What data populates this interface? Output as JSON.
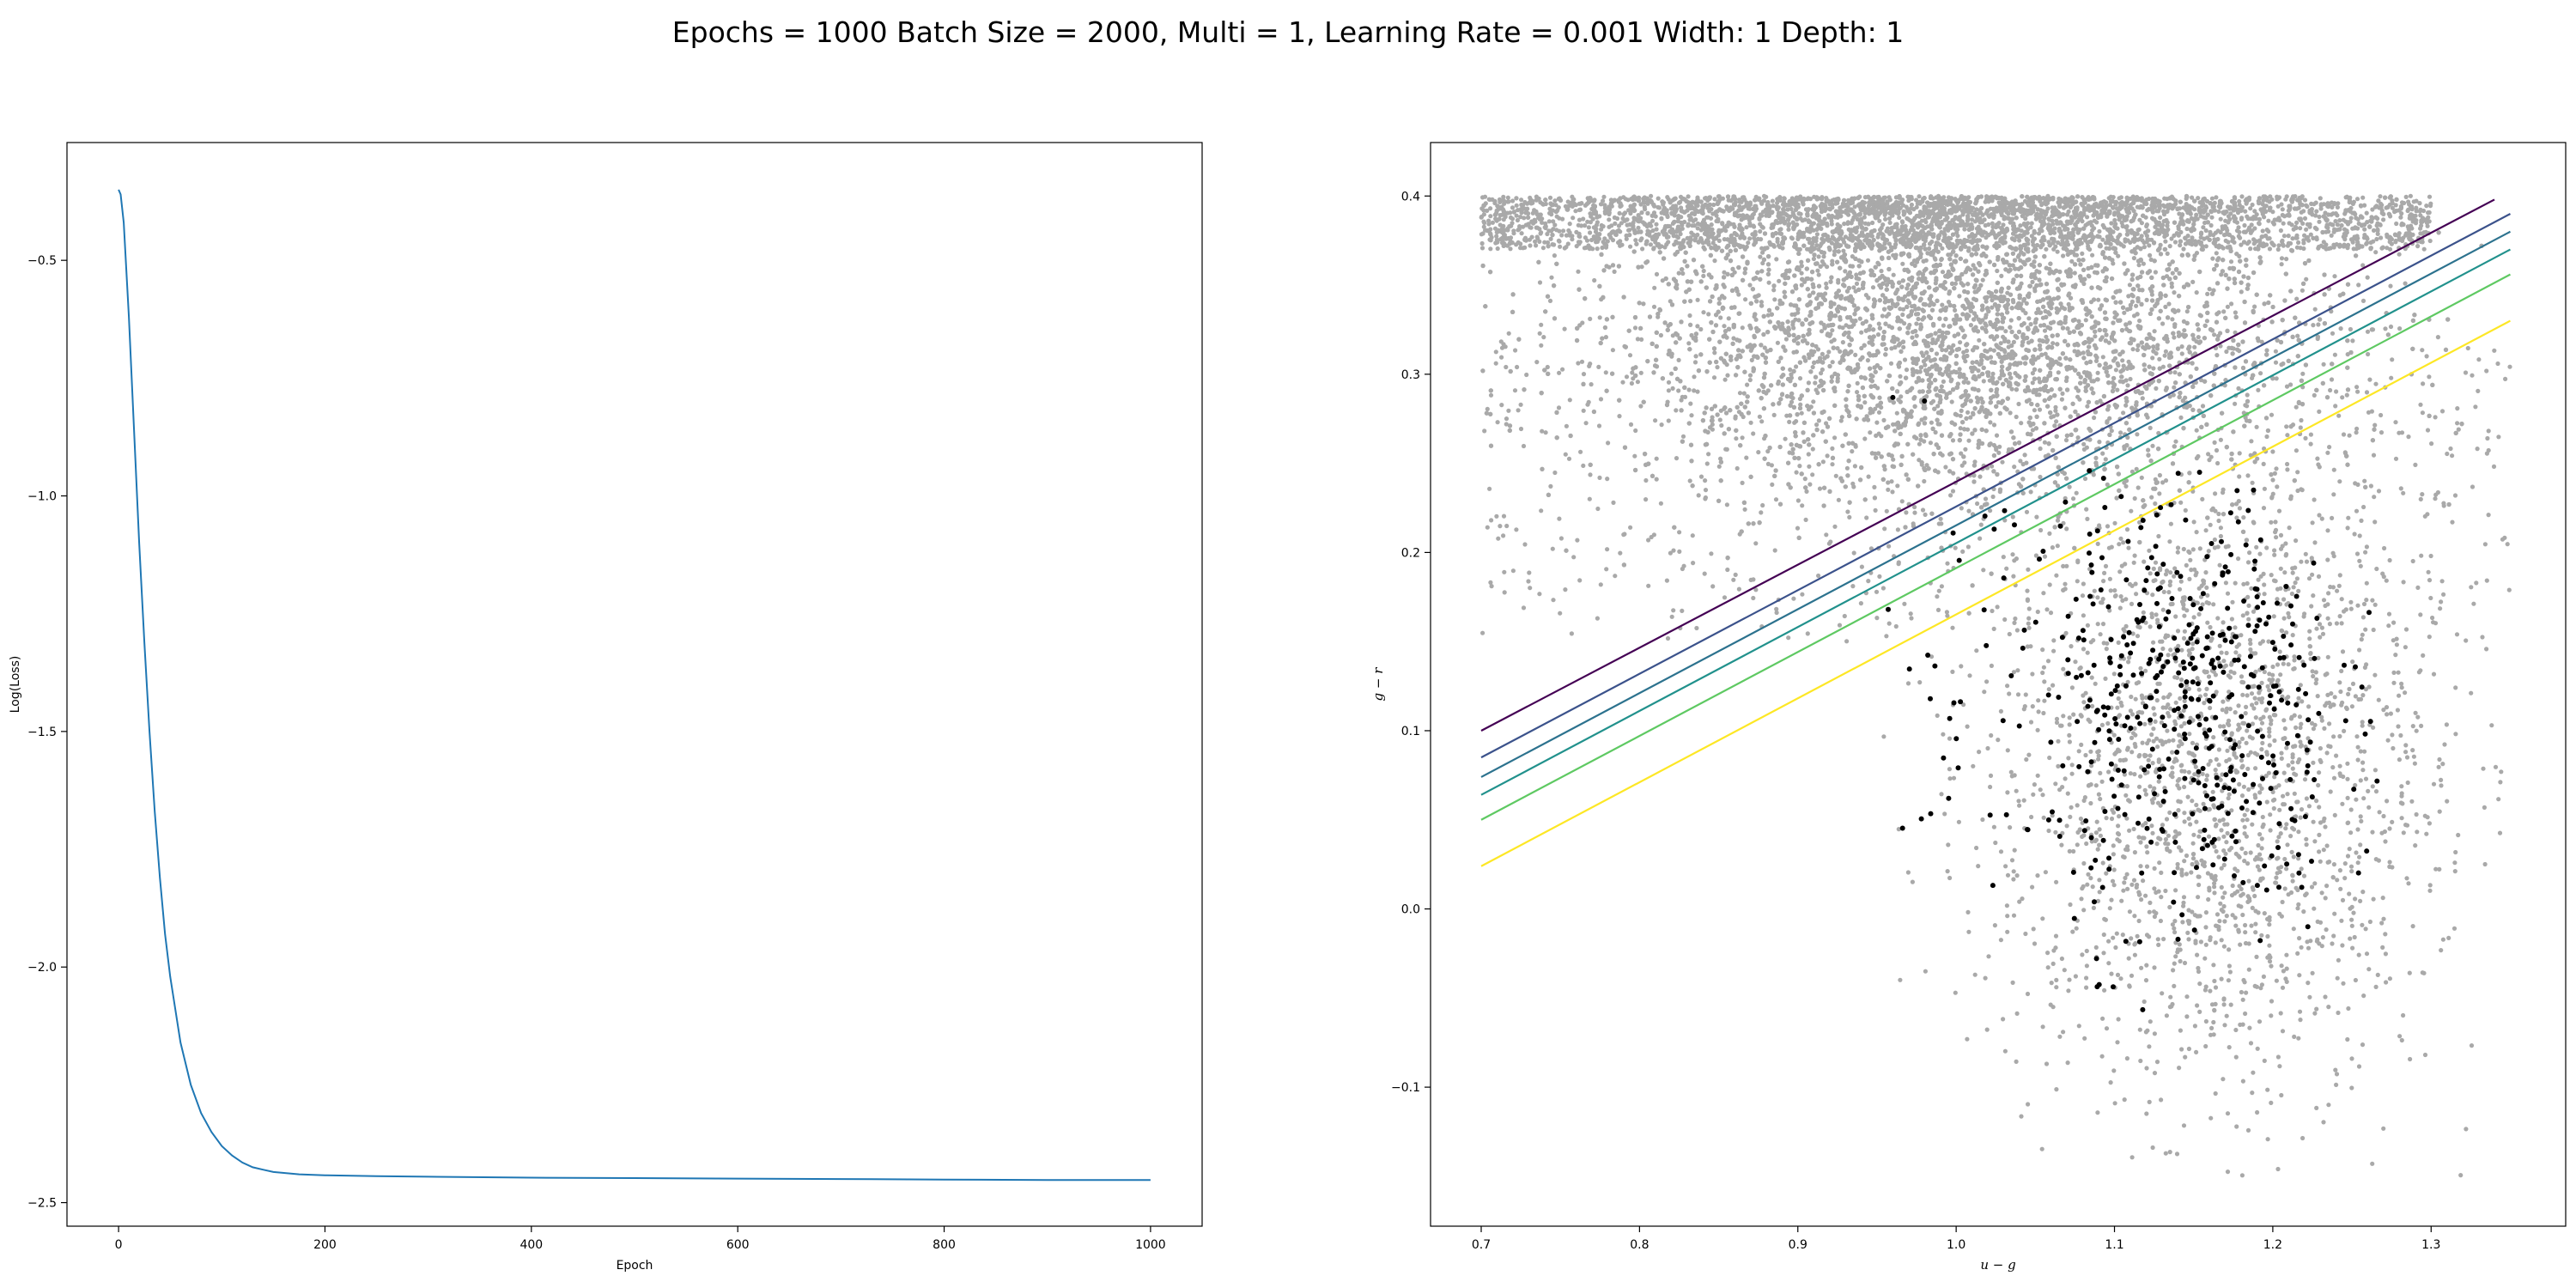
{
  "figure": {
    "title": "Epochs = 1000 Batch Size = 2000, Multi = 1, Learning Rate = 0.001 Width: 1 Depth: 1"
  },
  "chart_data": [
    {
      "type": "line",
      "xlabel": "Epoch",
      "ylabel": "Log(Loss)",
      "xlim": [
        -50,
        1050
      ],
      "ylim": [
        -2.55,
        -0.25
      ],
      "xticks": [
        0,
        200,
        400,
        600,
        800,
        1000
      ],
      "yticks": [
        -2.5,
        -2.0,
        -1.5,
        -1.0,
        -0.5
      ],
      "grid": false,
      "series": [
        {
          "color": "#1f77b4",
          "x": [
            0,
            2,
            5,
            10,
            15,
            20,
            25,
            30,
            35,
            40,
            45,
            50,
            60,
            70,
            80,
            90,
            100,
            110,
            120,
            130,
            140,
            150,
            175,
            200,
            250,
            300,
            400,
            500,
            600,
            700,
            800,
            900,
            1000
          ],
          "y": [
            -0.35,
            -0.36,
            -0.42,
            -0.62,
            -0.86,
            -1.1,
            -1.31,
            -1.5,
            -1.67,
            -1.81,
            -1.93,
            -2.02,
            -2.16,
            -2.25,
            -2.31,
            -2.35,
            -2.38,
            -2.4,
            -2.415,
            -2.425,
            -2.43,
            -2.435,
            -2.44,
            -2.442,
            -2.444,
            -2.445,
            -2.447,
            -2.448,
            -2.449,
            -2.45,
            -2.451,
            -2.452,
            -2.452
          ]
        }
      ]
    },
    {
      "type": "scatter",
      "xlabel": "u − g",
      "ylabel": "g − r",
      "xlim": [
        0.668,
        1.385
      ],
      "ylim": [
        -0.178,
        0.43
      ],
      "xticks": [
        0.7,
        0.8,
        0.9,
        1.0,
        1.1,
        1.2,
        1.3
      ],
      "yticks": [
        -0.1,
        0.0,
        0.1,
        0.2,
        0.3,
        0.4
      ],
      "grid": false,
      "scatter_series": [
        {
          "name": "",
          "color": "#a9a9a9",
          "approx_count": 30000,
          "x_range": [
            0.7,
            1.35
          ],
          "y_range": [
            -0.15,
            0.4
          ]
        },
        {
          "name": "",
          "color": "#000000",
          "approx_count": 420,
          "x_range": [
            0.95,
            1.27
          ],
          "y_range": [
            -0.06,
            0.29
          ]
        }
      ],
      "lines": [
        {
          "color": "#440154",
          "x": [
            0.7,
            1.34
          ],
          "y": [
            0.1,
            0.398
          ]
        },
        {
          "color": "#3b528b",
          "x": [
            0.7,
            1.35
          ],
          "y": [
            0.085,
            0.39
          ]
        },
        {
          "color": "#2c728e",
          "x": [
            0.7,
            1.35
          ],
          "y": [
            0.074,
            0.38
          ]
        },
        {
          "color": "#21918c",
          "x": [
            0.7,
            1.35
          ],
          "y": [
            0.064,
            0.37
          ]
        },
        {
          "color": "#5ec962",
          "x": [
            0.7,
            1.35
          ],
          "y": [
            0.05,
            0.356
          ]
        },
        {
          "color": "#fde725",
          "x": [
            0.7,
            1.35
          ],
          "y": [
            0.024,
            0.33
          ]
        }
      ]
    }
  ]
}
